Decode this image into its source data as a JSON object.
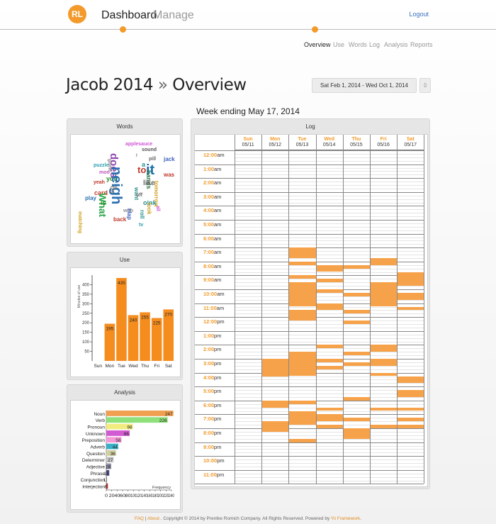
{
  "header": {
    "logo_text": "RL",
    "nav": [
      "Dashboard",
      "Manage"
    ],
    "logout": "Logout",
    "subnav": [
      "Overview",
      "Use",
      "Words",
      "Log",
      "Analysis",
      "Reports"
    ]
  },
  "page": {
    "title_name": "Jacob 2014",
    "title_sep": "»",
    "title_section": "Overview",
    "date_range": "Sat Feb 1, 2014 - Wed Oct 1, 2014",
    "export_icon": "document-icon",
    "week_title": "Week ending May 17, 2014"
  },
  "panels": {
    "words_title": "Words",
    "use_title": "Use",
    "analysis_title": "Analysis",
    "log_title": "Log"
  },
  "word_cloud": [
    {
      "text": "applesauce",
      "color": "#d055d6"
    },
    {
      "text": "sound",
      "color": "#555555"
    },
    {
      "text": "I",
      "color": "#777777"
    },
    {
      "text": "pill",
      "color": "#666666"
    },
    {
      "text": "jack",
      "color": "#3b5fbf"
    },
    {
      "text": "does",
      "color": "#8e44ad"
    },
    {
      "text": "a",
      "color": "#2a8f8f"
    },
    {
      "text": "puzzle",
      "color": "#2aa0b0"
    },
    {
      "text": "to",
      "color": "#c0392b"
    },
    {
      "text": "it",
      "color": "#1f6fb0"
    },
    {
      "text": "moo",
      "color": "#c055c0"
    },
    {
      "text": "game",
      "color": "#888888"
    },
    {
      "text": "hands",
      "color": "#2a7a4a"
    },
    {
      "text": "was",
      "color": "#c0392b"
    },
    {
      "text": "you",
      "color": "#2a8f2a"
    },
    {
      "text": "neigh",
      "color": "#2a6fb0"
    },
    {
      "text": "like",
      "color": "#666666"
    },
    {
      "text": "yeah",
      "color": "#c0392b"
    },
    {
      "text": "do",
      "color": "#888888"
    },
    {
      "text": "want",
      "color": "#2a8f8f"
    },
    {
      "text": "tomorrow",
      "color": "#d0a020"
    },
    {
      "text": "card",
      "color": "#c0392b"
    },
    {
      "text": "in",
      "color": "#888888"
    },
    {
      "text": "off",
      "color": "#666666"
    },
    {
      "text": "play",
      "color": "#2a6fb0"
    },
    {
      "text": "What",
      "color": "#2ea84a"
    },
    {
      "text": "oink",
      "color": "#2a8f8f"
    },
    {
      "text": "is",
      "color": "#2a8f2a"
    },
    {
      "text": "look",
      "color": "#d0a020"
    },
    {
      "text": "all",
      "color": "#d055d6"
    },
    {
      "text": "with",
      "color": "#888888"
    },
    {
      "text": "roll",
      "color": "#2a8f8f"
    },
    {
      "text": "clap",
      "color": "#3b5fbf"
    },
    {
      "text": "back",
      "color": "#c0392b"
    },
    {
      "text": "matching",
      "color": "#d0a020"
    },
    {
      "text": "tv",
      "color": "#2aa0b0"
    }
  ],
  "use_chart": {
    "chart_data": {
      "type": "bar",
      "categories": [
        "Sun",
        "Mon",
        "Tue",
        "Wed",
        "Thu",
        "Fri",
        "Sat"
      ],
      "values": [
        0,
        195,
        435,
        240,
        255,
        225,
        270
      ],
      "ylabel": "Minutes of use",
      "ylim": [
        0,
        450
      ],
      "yticks": [
        50,
        100,
        150,
        200,
        250,
        300,
        350,
        400
      ],
      "bar_color": "#f58c1e"
    }
  },
  "analysis_chart": {
    "chart_data": {
      "type": "bar",
      "orientation": "horizontal",
      "categories": [
        "Noun",
        "Verb",
        "Pronoun",
        "Unknown",
        "Preposition",
        "Adverb",
        "Question",
        "Determiner",
        "Adjective",
        "Phrase",
        "Conjunction",
        "Interjection"
      ],
      "values": [
        247,
        226,
        98,
        86,
        56,
        44,
        36,
        27,
        18,
        11,
        1,
        6
      ],
      "colors": [
        "#f0a050",
        "#8ee07a",
        "#f2ec80",
        "#d25ad2",
        "#f49ad8",
        "#3ab0c8",
        "#cfcfa0",
        "#c8c8c8",
        "#8a8aa0",
        "#4a4a80",
        "#808080",
        "#c03030"
      ],
      "xlabel": "Frequency",
      "xticks": [
        "0",
        "20",
        "40",
        "60",
        "80",
        "100",
        "120",
        "140",
        "160",
        "180",
        "200",
        "220",
        "240"
      ]
    }
  },
  "log": {
    "days": [
      {
        "name": "Sun",
        "date": "05/11"
      },
      {
        "name": "Mon",
        "date": "05/12"
      },
      {
        "name": "Tue",
        "date": "05/13"
      },
      {
        "name": "Wed",
        "date": "05/14"
      },
      {
        "name": "Thu",
        "date": "05/15"
      },
      {
        "name": "Fri",
        "date": "05/16"
      },
      {
        "name": "Sat",
        "date": "05/17"
      }
    ],
    "hours": [
      {
        "h": "12:00",
        "s": "am"
      },
      {
        "h": "1:00",
        "s": "am"
      },
      {
        "h": "2:00",
        "s": "am"
      },
      {
        "h": "3:00",
        "s": "am"
      },
      {
        "h": "4:00",
        "s": "am"
      },
      {
        "h": "5:00",
        "s": "am"
      },
      {
        "h": "6:00",
        "s": "am"
      },
      {
        "h": "7:00",
        "s": "am"
      },
      {
        "h": "8:00",
        "s": "am"
      },
      {
        "h": "9:00",
        "s": "am"
      },
      {
        "h": "10:00",
        "s": "am"
      },
      {
        "h": "11:00",
        "s": "am"
      },
      {
        "h": "12:00",
        "s": "pm"
      },
      {
        "h": "1:00",
        "s": "pm"
      },
      {
        "h": "2:00",
        "s": "pm"
      },
      {
        "h": "3:00",
        "s": "pm"
      },
      {
        "h": "4:00",
        "s": "pm"
      },
      {
        "h": "5:00",
        "s": "pm"
      },
      {
        "h": "6:00",
        "s": "pm"
      },
      {
        "h": "7:00",
        "s": "pm"
      },
      {
        "h": "8:00",
        "s": "pm"
      },
      {
        "h": "9:00",
        "s": "pm"
      },
      {
        "h": "10:00",
        "s": "pm"
      },
      {
        "h": "11:00",
        "s": "pm"
      }
    ],
    "activity_color": "#f6a24a",
    "activity": [
      {
        "day": 2,
        "start": 7.0,
        "end": 7.75
      },
      {
        "day": 2,
        "start": 8.0,
        "end": 8.25
      },
      {
        "day": 2,
        "start": 9.0,
        "end": 9.25
      },
      {
        "day": 2,
        "start": 9.5,
        "end": 11.25
      },
      {
        "day": 2,
        "start": 11.5,
        "end": 12.25
      },
      {
        "day": 2,
        "start": 14.5,
        "end": 16.25
      },
      {
        "day": 2,
        "start": 18.0,
        "end": 18.25
      },
      {
        "day": 2,
        "start": 18.75,
        "end": 19.75
      },
      {
        "day": 2,
        "start": 20.75,
        "end": 21.0
      },
      {
        "day": 1,
        "start": 15.0,
        "end": 16.25
      },
      {
        "day": 1,
        "start": 18.0,
        "end": 18.5
      },
      {
        "day": 1,
        "start": 19.5,
        "end": 20.25
      },
      {
        "day": 3,
        "start": 8.25,
        "end": 8.75
      },
      {
        "day": 3,
        "start": 9.25,
        "end": 9.5
      },
      {
        "day": 3,
        "start": 10.0,
        "end": 10.25
      },
      {
        "day": 3,
        "start": 11.0,
        "end": 11.5
      },
      {
        "day": 3,
        "start": 14.0,
        "end": 14.25
      },
      {
        "day": 3,
        "start": 15.0,
        "end": 15.25
      },
      {
        "day": 3,
        "start": 15.5,
        "end": 15.75
      },
      {
        "day": 3,
        "start": 18.5,
        "end": 18.75
      },
      {
        "day": 3,
        "start": 19.0,
        "end": 19.5
      },
      {
        "day": 3,
        "start": 19.75,
        "end": 20.0
      },
      {
        "day": 4,
        "start": 8.25,
        "end": 8.5
      },
      {
        "day": 4,
        "start": 10.25,
        "end": 10.5
      },
      {
        "day": 4,
        "start": 11.5,
        "end": 11.75
      },
      {
        "day": 4,
        "start": 12.25,
        "end": 12.5
      },
      {
        "day": 4,
        "start": 14.5,
        "end": 14.75
      },
      {
        "day": 4,
        "start": 15.25,
        "end": 15.5
      },
      {
        "day": 4,
        "start": 17.75,
        "end": 18.0
      },
      {
        "day": 4,
        "start": 19.25,
        "end": 19.5
      },
      {
        "day": 4,
        "start": 20.0,
        "end": 20.75
      },
      {
        "day": 5,
        "start": 7.75,
        "end": 8.25
      },
      {
        "day": 5,
        "start": 9.5,
        "end": 11.25
      },
      {
        "day": 5,
        "start": 14.0,
        "end": 14.5
      },
      {
        "day": 5,
        "start": 15.0,
        "end": 15.5
      },
      {
        "day": 5,
        "start": 16.0,
        "end": 16.25
      },
      {
        "day": 5,
        "start": 18.5,
        "end": 18.75
      },
      {
        "day": 5,
        "start": 19.75,
        "end": 20.0
      },
      {
        "day": 6,
        "start": 8.75,
        "end": 9.75
      },
      {
        "day": 6,
        "start": 10.25,
        "end": 10.75
      },
      {
        "day": 6,
        "start": 11.25,
        "end": 11.5
      },
      {
        "day": 6,
        "start": 16.25,
        "end": 16.75
      },
      {
        "day": 6,
        "start": 17.25,
        "end": 17.75
      },
      {
        "day": 6,
        "start": 18.5,
        "end": 18.75
      },
      {
        "day": 6,
        "start": 19.25,
        "end": 19.5
      },
      {
        "day": 6,
        "start": 19.75,
        "end": 20.0
      }
    ]
  },
  "footer": {
    "faq": "FAQ",
    "sep": "|",
    "about": "About",
    "copyright": ". Copyright © 2014 by Prentke Romich Company. All Rights Reserved. Powered by",
    "framework": "Yii Framework",
    "end": "."
  }
}
